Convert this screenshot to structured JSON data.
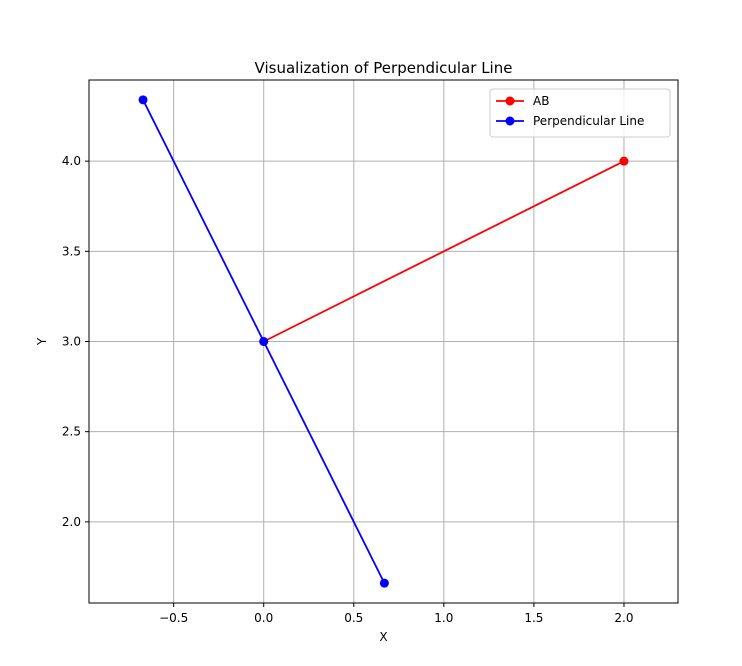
{
  "chart_data": {
    "type": "line",
    "title": "Visualization of Perpendicular Line",
    "xlabel": "X",
    "ylabel": "Y",
    "xlim": [
      -0.97,
      2.3
    ],
    "ylim": [
      1.55,
      4.45
    ],
    "xticks": [
      -0.5,
      0.0,
      0.5,
      1.0,
      1.5,
      2.0
    ],
    "xtick_labels": [
      "−0.5",
      "0.0",
      "0.5",
      "1.0",
      "1.5",
      "2.0"
    ],
    "yticks": [
      2.0,
      2.5,
      3.0,
      3.5,
      4.0
    ],
    "ytick_labels": [
      "2.0",
      "2.5",
      "3.0",
      "3.5",
      "4.0"
    ],
    "grid": true,
    "legend_position": "top-right",
    "series": [
      {
        "name": "AB",
        "color": "#ff0000",
        "x": [
          0.0,
          2.0
        ],
        "y": [
          3.0,
          4.0
        ]
      },
      {
        "name": "Perpendicular Line",
        "color": "#0000ff",
        "x": [
          -0.67,
          0.0,
          0.67
        ],
        "y": [
          4.34,
          3.0,
          1.66
        ]
      }
    ]
  }
}
